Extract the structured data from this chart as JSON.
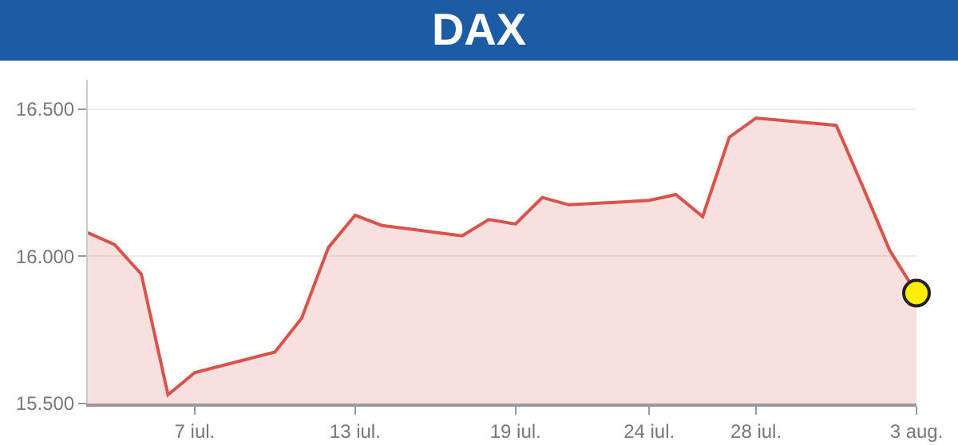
{
  "chart_data": {
    "type": "area",
    "title": "DAX",
    "x": [
      "--07-03",
      "--07-04",
      "--07-05",
      "--07-06",
      "--07-07",
      "--07-10",
      "--07-11",
      "--07-12",
      "--07-13",
      "--07-14",
      "--07-17",
      "--07-18",
      "--07-19",
      "--07-20",
      "--07-21",
      "--07-24",
      "--07-25",
      "--07-26",
      "--07-27",
      "--07-28",
      "--07-31",
      "--08-01",
      "--08-02",
      "--08-03"
    ],
    "series": [
      {
        "color": "#d9534a",
        "marker": "none",
        "values": [
          16080,
          16040,
          15940,
          15530,
          15605,
          15675,
          15790,
          16030,
          16140,
          16105,
          16070,
          16125,
          16110,
          16200,
          16175,
          16190,
          16210,
          16135,
          16405,
          16470,
          16445,
          16235,
          16020,
          15875
        ]
      },
      {
        "type": "scatter",
        "marker": "circle",
        "color": "#ffee00",
        "x": [
          "--08-03"
        ],
        "values": [
          15875
        ]
      }
    ],
    "xlim": [
      "--07-03",
      "--08-03"
    ],
    "xticks": [
      {
        "value": "--07-07",
        "label": "7 iul."
      },
      {
        "value": "--07-13",
        "label": "13 iul."
      },
      {
        "value": "--07-19",
        "label": "19 iul."
      },
      {
        "value": "--07-24",
        "label": "24 iul."
      },
      {
        "value": "--07-28",
        "label": "28 iul."
      },
      {
        "value": "--08-03",
        "label": "3 aug."
      }
    ],
    "ylim": [
      15500,
      16600
    ],
    "yticks": [
      {
        "value": 15500,
        "label": "15.500"
      },
      {
        "value": 16000,
        "label": "16.000"
      },
      {
        "value": 16500,
        "label": "16.500"
      }
    ],
    "grid": "y"
  }
}
